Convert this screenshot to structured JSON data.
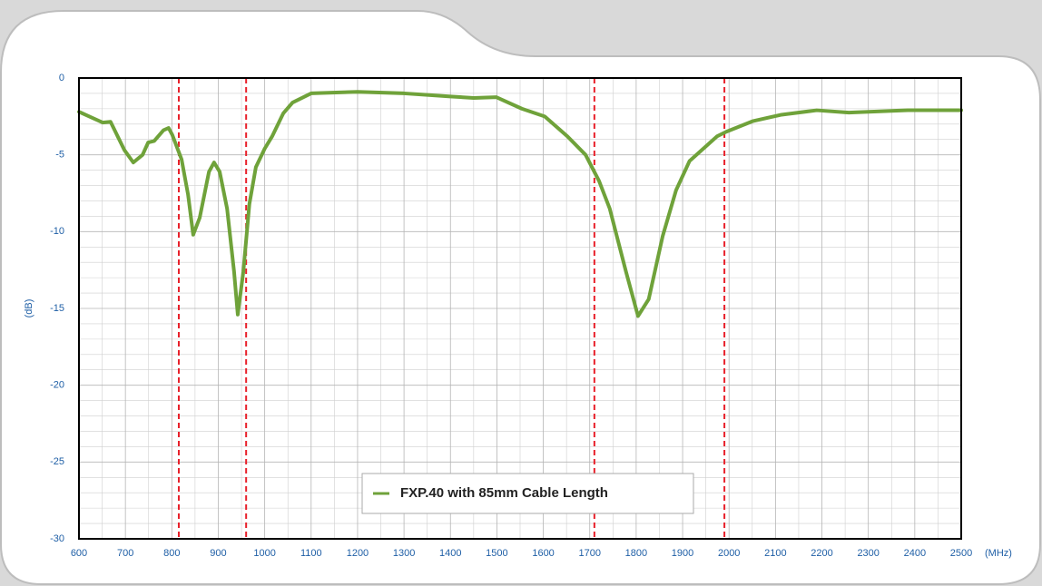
{
  "chart_data": {
    "type": "line",
    "ylabel": "(dB)",
    "xlabel": "(MHz)",
    "xlim": [
      600,
      2500
    ],
    "xticks": [
      600,
      700,
      800,
      900,
      1000,
      1100,
      1200,
      1300,
      1400,
      1500,
      1600,
      1700,
      1800,
      1900,
      2000,
      2100,
      2200,
      2300,
      2400,
      2500
    ],
    "ylim": [
      -30,
      0
    ],
    "yticks": [
      0,
      -5,
      -10,
      -15,
      -20,
      -25,
      -30
    ],
    "grid": true,
    "markers": [
      815,
      960,
      1710,
      1990
    ],
    "marker_color": "#e8202a",
    "legend": "bottom",
    "x": [
      600,
      651,
      668,
      698,
      717,
      737,
      749,
      762,
      782,
      793,
      801,
      821,
      835,
      846,
      860,
      880,
      891,
      903,
      919,
      934,
      942,
      954,
      967,
      981,
      1000,
      1016,
      1040,
      1060,
      1100,
      1200,
      1300,
      1350,
      1400,
      1450,
      1499,
      1554,
      1603,
      1652,
      1691,
      1720,
      1743,
      1778,
      1804,
      1827,
      1857,
      1886,
      1915,
      1974,
      1994,
      2052,
      2111,
      2189,
      2258,
      2385,
      2500
    ],
    "series": [
      {
        "name": "FXP.40 with 85mm Cable Length",
        "color": "#6fa23a",
        "values": [
          -2.2,
          -2.9,
          -2.85,
          -4.7,
          -5.5,
          -5.0,
          -4.2,
          -4.1,
          -3.4,
          -3.25,
          -3.7,
          -5.3,
          -7.6,
          -10.2,
          -9.1,
          -6.1,
          -5.5,
          -6.1,
          -8.5,
          -12.6,
          -15.4,
          -12.6,
          -8.2,
          -5.8,
          -4.6,
          -3.8,
          -2.3,
          -1.6,
          -1.0,
          -0.9,
          -1.0,
          -1.1,
          -1.2,
          -1.3,
          -1.25,
          -2.0,
          -2.5,
          -3.8,
          -5.0,
          -6.7,
          -8.5,
          -12.6,
          -15.5,
          -14.4,
          -10.3,
          -7.3,
          -5.4,
          -3.8,
          -3.5,
          -2.8,
          -2.4,
          -2.1,
          -2.25,
          -2.1,
          -2.1
        ]
      }
    ]
  }
}
